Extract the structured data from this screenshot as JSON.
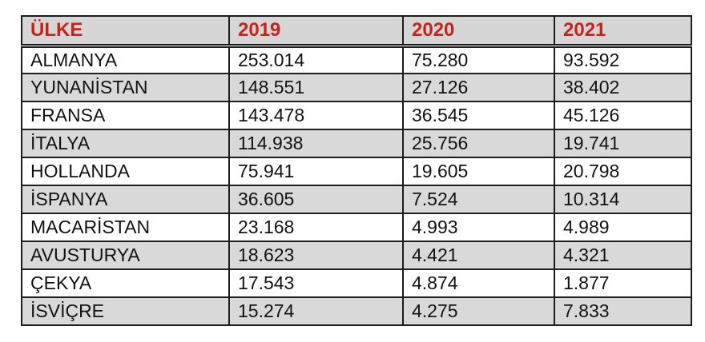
{
  "chart_data": {
    "type": "table",
    "title": "",
    "columns": [
      "ÜLKE",
      "2019",
      "2020",
      "2021"
    ],
    "rows": [
      [
        "ALMANYA",
        "253.014",
        "75.280",
        "93.592"
      ],
      [
        "YUNANİSTAN",
        "148.551",
        "27.126",
        "38.402"
      ],
      [
        "FRANSA",
        "143.478",
        "36.545",
        "45.126"
      ],
      [
        "İTALYA",
        "114.938",
        "25.756",
        "19.741"
      ],
      [
        "HOLLANDA",
        "75.941",
        "19.605",
        "20.798"
      ],
      [
        "İSPANYA",
        "36.605",
        "7.524",
        "10.314"
      ],
      [
        "MACARİSTAN",
        "23.168",
        "4.993",
        "4.989"
      ],
      [
        "AVUSTURYA",
        "18.623",
        "4.421",
        "4.321"
      ],
      [
        "ÇEKYA",
        "17.543",
        "4.874",
        "1.877"
      ],
      [
        "İSVİÇRE",
        "15.274",
        "4.275",
        "7.833"
      ]
    ],
    "layout": {
      "grid": true,
      "header_style": "bold red text on gray background",
      "row_striping": "white / light gray alternating"
    }
  },
  "colors": {
    "header_text": "#c5241e",
    "header_bg": "#d6d6d6",
    "row_bg": "#ffffff",
    "row_alt_bg": "#d9d9d9",
    "border": "#1c1c1c",
    "text": "#121212",
    "page_bg": "#ffffff"
  }
}
